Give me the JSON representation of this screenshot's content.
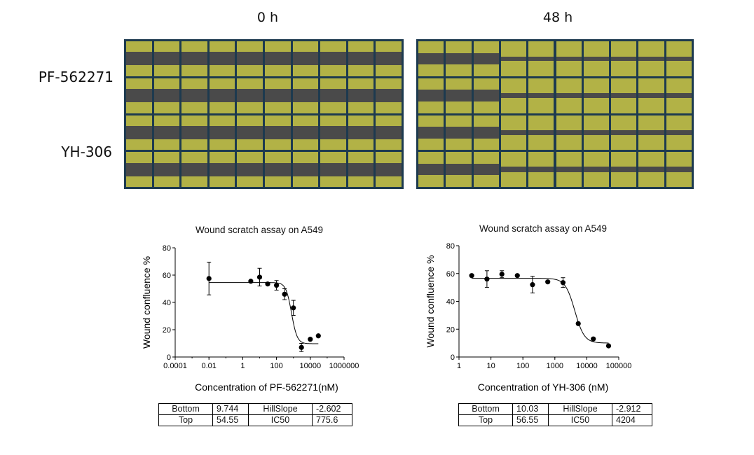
{
  "panel_labels": {
    "time_0": "0 h",
    "time_48": "48 h",
    "row_1": "PF-562271",
    "row_2": "YH-306"
  },
  "colors": {
    "plate_border": "#1d3a4f",
    "cell_area": "#b2b246",
    "wound_area": "#4a4a4a"
  },
  "chart_data": [
    {
      "type": "scatter",
      "title": "Wound scratch assay on A549",
      "xlabel": "Concentration of PF-562271(nM)",
      "ylabel": "Wound confluence %",
      "x_scale": "log",
      "xlim": [
        0.0001,
        1000000
      ],
      "ylim": [
        0,
        80
      ],
      "x_ticks": [
        0.0001,
        0.01,
        1,
        100,
        10000,
        1000000
      ],
      "x_tick_labels": [
        "0.0001",
        "0.01",
        "1",
        "100",
        "10000",
        "1000000"
      ],
      "y_ticks": [
        0,
        20,
        40,
        60,
        80
      ],
      "points": [
        {
          "x": 0.01,
          "y": 57.5,
          "err": 12
        },
        {
          "x": 3,
          "y": 55.5,
          "err": 0
        },
        {
          "x": 10,
          "y": 58.5,
          "err": 6.5
        },
        {
          "x": 30,
          "y": 53.5,
          "err": 0
        },
        {
          "x": 100,
          "y": 52.5,
          "err": 3.5
        },
        {
          "x": 300,
          "y": 46,
          "err": 4
        },
        {
          "x": 1000,
          "y": 36,
          "err": 5.5
        },
        {
          "x": 3000,
          "y": 7,
          "err": 3
        },
        {
          "x": 10000,
          "y": 13,
          "err": 0
        },
        {
          "x": 30000,
          "y": 15.5,
          "err": 0
        }
      ],
      "fit": {
        "bottom": 9.744,
        "top": 54.55,
        "hillslope": -2.602,
        "ic50": 775.6
      },
      "params_table": [
        [
          "Bottom",
          "9.744",
          "HillSlope",
          "-2.602"
        ],
        [
          "Top",
          "54.55",
          "IC50",
          "775.6"
        ]
      ]
    },
    {
      "type": "scatter",
      "title": "Wound scratch assay on A549",
      "xlabel": "Concentration of YH-306 (nM)",
      "ylabel": "Wound confluence %",
      "x_scale": "log",
      "xlim": [
        1,
        100000
      ],
      "ylim": [
        0,
        80
      ],
      "x_ticks": [
        1,
        10,
        100,
        1000,
        10000,
        100000
      ],
      "x_tick_labels": [
        "1",
        "10",
        "100",
        "1000",
        "10000",
        "100000"
      ],
      "y_ticks": [
        0,
        20,
        40,
        60,
        80
      ],
      "points": [
        {
          "x": 2.5,
          "y": 58.5,
          "err": 0
        },
        {
          "x": 7.5,
          "y": 56,
          "err": 6
        },
        {
          "x": 22,
          "y": 59.5,
          "err": 2.5
        },
        {
          "x": 67,
          "y": 58.5,
          "err": 0
        },
        {
          "x": 200,
          "y": 52,
          "err": 6
        },
        {
          "x": 600,
          "y": 54,
          "err": 0
        },
        {
          "x": 1800,
          "y": 53.5,
          "err": 3.5
        },
        {
          "x": 5400,
          "y": 24,
          "err": 0
        },
        {
          "x": 16000,
          "y": 13,
          "err": 0
        },
        {
          "x": 48000,
          "y": 8,
          "err": 0
        }
      ],
      "fit": {
        "bottom": 10.03,
        "top": 56.55,
        "hillslope": -2.912,
        "ic50": 4204
      },
      "params_table": [
        [
          "Bottom",
          "10.03",
          "HillSlope",
          "-2.912"
        ],
        [
          "Top",
          "56.55",
          "IC50",
          "4204"
        ]
      ]
    }
  ]
}
